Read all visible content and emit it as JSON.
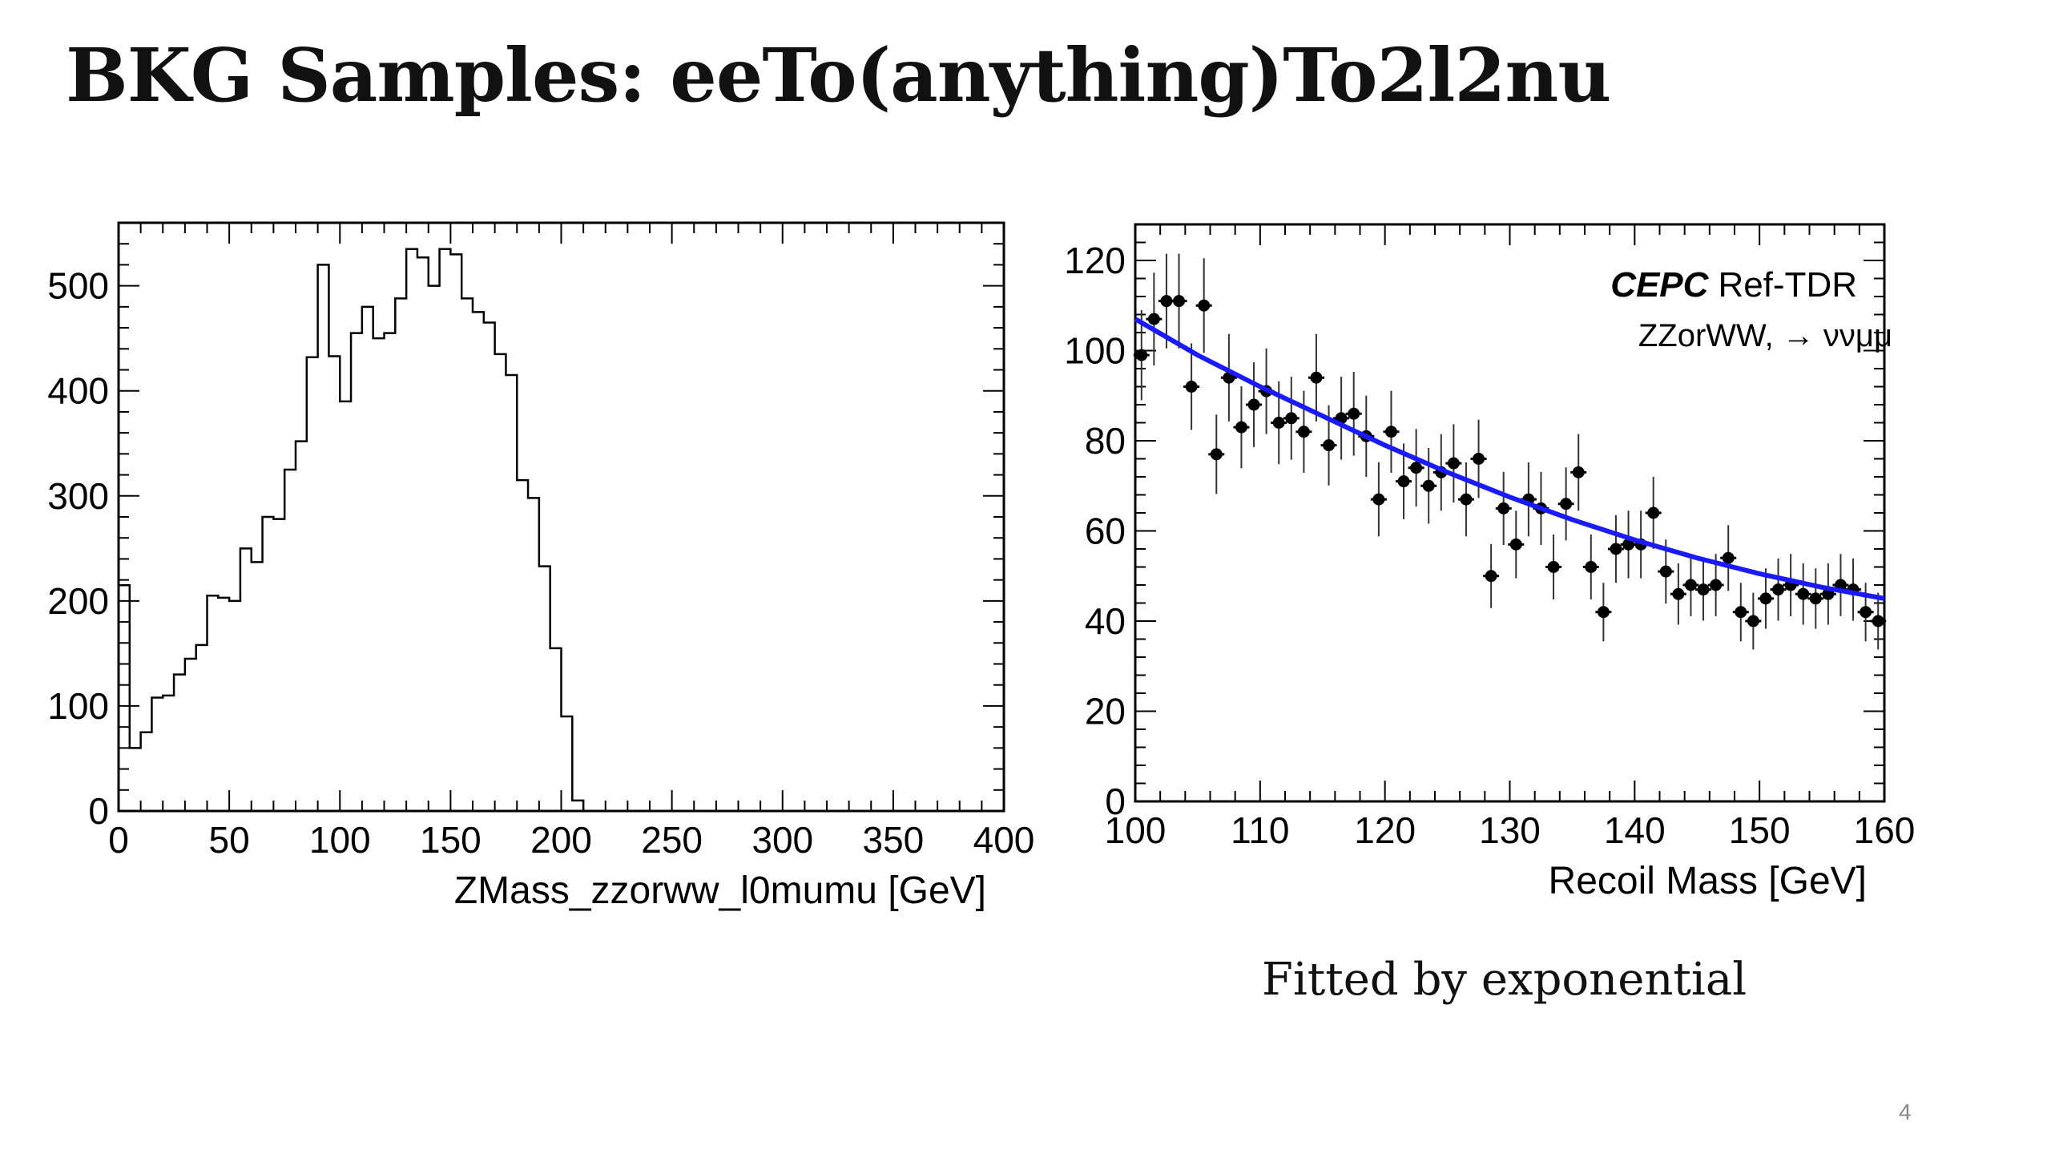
{
  "slide": {
    "title": "BKG Samples: eeTo(anything)To2l2nu",
    "caption": "Fitted by exponential",
    "page_number": "4"
  },
  "colors": {
    "fit_line": "#1a1aff",
    "axis": "#000000",
    "marker": "#000000"
  },
  "chart_data": [
    {
      "type": "histogram",
      "title": "",
      "xlabel": "ZMass_zzorww_l0mumu [GeV]",
      "ylabel": "",
      "xlim": [
        0,
        400
      ],
      "ylim": [
        0,
        560
      ],
      "x_ticks": [
        0,
        50,
        100,
        150,
        200,
        250,
        300,
        350,
        400
      ],
      "x_tick_labels": [
        "0",
        "50",
        "100",
        "150",
        "200",
        "250",
        "300",
        "350",
        "400"
      ],
      "y_ticks": [
        0,
        100,
        200,
        300,
        400,
        500
      ],
      "y_tick_labels": [
        "0",
        "100",
        "200",
        "300",
        "400",
        "500"
      ],
      "bin_width": 5,
      "bin_start": 0,
      "values": [
        215,
        60,
        75,
        108,
        110,
        130,
        145,
        158,
        205,
        203,
        200,
        250,
        237,
        280,
        278,
        325,
        352,
        432,
        520,
        433,
        390,
        455,
        480,
        450,
        455,
        488,
        535,
        527,
        500,
        535,
        530,
        488,
        475,
        465,
        435,
        415,
        315,
        298,
        233,
        155,
        90,
        10,
        0
      ]
    },
    {
      "type": "scatter",
      "title": "",
      "xlabel": "Recoil Mass [GeV]",
      "ylabel": "",
      "xlim": [
        100,
        160
      ],
      "ylim": [
        0,
        128
      ],
      "x_ticks": [
        100,
        110,
        120,
        130,
        140,
        150,
        160
      ],
      "x_tick_labels": [
        "100",
        "110",
        "120",
        "130",
        "140",
        "150",
        "160"
      ],
      "y_ticks": [
        0,
        20,
        40,
        60,
        80,
        100,
        120
      ],
      "y_tick_labels": [
        "0",
        "20",
        "40",
        "60",
        "80",
        "100",
        "120"
      ],
      "legend": {
        "experiment": "CEPC",
        "label": "Ref-TDR",
        "process": "ZZorWW, → ννμμ",
        "placement": "top-right"
      },
      "series": [
        {
          "name": "data",
          "style": "points-with-errors",
          "x": [
            100.5,
            101.5,
            102.5,
            103.5,
            104.5,
            105.5,
            106.5,
            107.5,
            108.5,
            109.5,
            110.5,
            111.5,
            112.5,
            113.5,
            114.5,
            115.5,
            116.5,
            117.5,
            118.5,
            119.5,
            120.5,
            121.5,
            122.5,
            123.5,
            124.5,
            125.5,
            126.5,
            127.5,
            128.5,
            129.5,
            130.5,
            131.5,
            132.5,
            133.5,
            134.5,
            135.5,
            136.5,
            137.5,
            138.5,
            139.5,
            140.5,
            141.5,
            142.5,
            143.5,
            144.5,
            145.5,
            146.5,
            147.5,
            148.5,
            149.5,
            150.5,
            151.5,
            152.5,
            153.5,
            154.5,
            155.5,
            156.5,
            157.5,
            158.5,
            159.5
          ],
          "y": [
            99,
            107,
            111,
            111,
            92,
            110,
            77,
            94,
            83,
            88,
            91,
            84,
            85,
            82,
            94,
            79,
            85,
            86,
            81,
            67,
            82,
            71,
            74,
            70,
            73,
            75,
            67,
            76,
            50,
            65,
            57,
            67,
            65,
            52,
            66,
            73,
            52,
            42,
            56,
            57,
            57,
            64,
            51,
            46,
            48,
            47,
            48,
            54,
            42,
            40,
            45,
            47,
            48,
            46,
            45,
            46,
            48,
            47,
            42,
            40
          ],
          "yerr": [
            10,
            10.3,
            10.5,
            10.5,
            9.6,
            10.5,
            8.8,
            9.7,
            9.1,
            9.4,
            9.5,
            9.2,
            9.2,
            9.1,
            9.7,
            8.9,
            9.2,
            9.3,
            9,
            8.2,
            9.1,
            8.4,
            8.6,
            8.4,
            8.5,
            8.7,
            8.2,
            8.7,
            7.1,
            8.1,
            7.5,
            8.2,
            8.1,
            7.2,
            8.1,
            8.5,
            7.2,
            6.5,
            7.5,
            7.5,
            7.5,
            8,
            7.1,
            6.8,
            6.9,
            6.9,
            6.9,
            7.3,
            6.5,
            6.3,
            6.7,
            6.9,
            6.9,
            6.8,
            6.7,
            6.8,
            6.9,
            6.9,
            6.5,
            6.3
          ]
        },
        {
          "name": "exponential fit",
          "style": "line",
          "x": [
            100,
            105,
            110,
            115,
            120,
            125,
            130,
            135,
            140,
            145,
            150,
            155,
            160
          ],
          "y": [
            107,
            99,
            92,
            85.5,
            79,
            73,
            67.5,
            62.5,
            58,
            54,
            50.5,
            47.5,
            45
          ]
        }
      ]
    }
  ]
}
